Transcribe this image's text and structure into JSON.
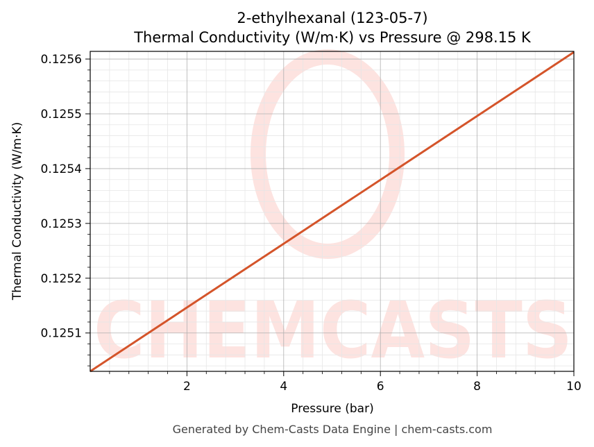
{
  "title_line1": "2-ethylhexanal (123-05-7)",
  "title_line2": "Thermal Conductivity (W/m·K) vs Pressure @ 298.15 K",
  "footer": "Generated by Chem-Casts Data Engine | chem-casts.com",
  "watermark": "CHEMCASTS",
  "colors": {
    "line": "#d4542a",
    "watermark": "#fde3e0",
    "grid_major": "#b0b0b0",
    "grid_minor": "#e6e6e6"
  },
  "chart_data": {
    "type": "line",
    "title": "2-ethylhexanal (123-05-7) Thermal Conductivity (W/m·K) vs Pressure @ 298.15 K",
    "xlabel": "Pressure (bar)",
    "ylabel": "Thermal Conductivity (W/m·K)",
    "xlim": [
      0.0,
      10.0
    ],
    "ylim": [
      0.12503,
      0.125614
    ],
    "xticks": [
      2,
      4,
      6,
      8,
      10
    ],
    "xtick_labels": [
      "2",
      "4",
      "6",
      "8",
      "10"
    ],
    "yticks": [
      0.1251,
      0.1252,
      0.1253,
      0.1254,
      0.1255,
      0.1256
    ],
    "ytick_labels": [
      "0.1251",
      "0.1252",
      "0.1253",
      "0.1254",
      "0.1255",
      "0.1256"
    ],
    "grid": true,
    "series": [
      {
        "x": [
          0.0,
          2.0,
          4.0,
          6.0,
          8.0,
          10.0
        ],
        "y": [
          0.12503,
          0.1251465,
          0.125263,
          0.1253795,
          0.125496,
          0.1256125
        ]
      }
    ]
  }
}
